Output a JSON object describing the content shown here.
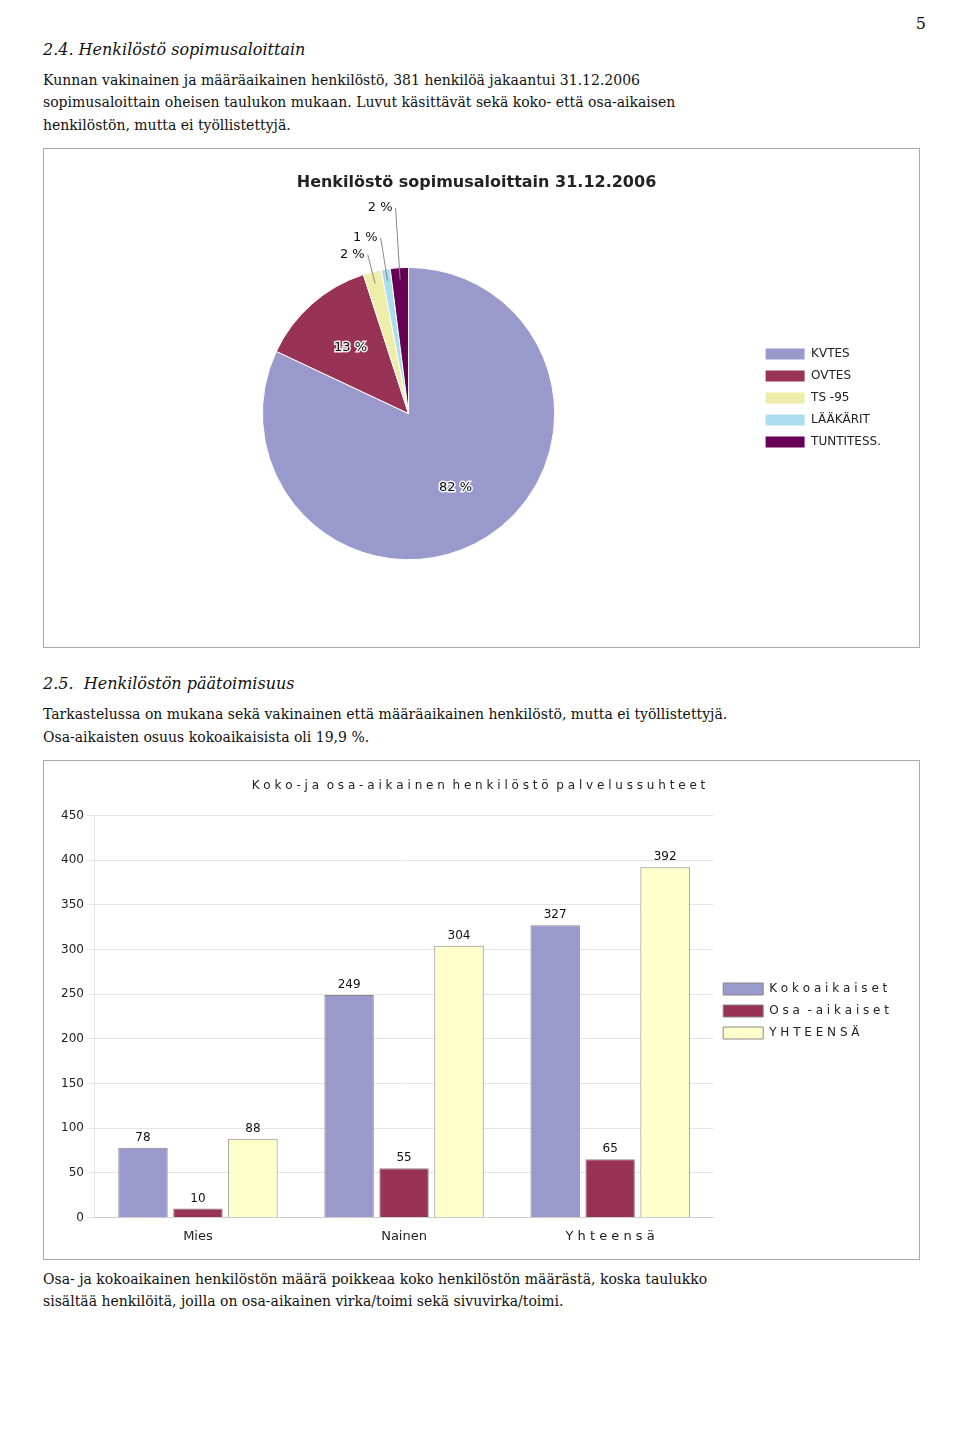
{
  "page_number": "5",
  "sections": [
    {
      "title": "2.4. Henkilöstö sopimusaloittain",
      "text": "Kunnan vakinainen ja määräaikainen henkilöstö, 381 henkilöä jakaantui 31.12.2006\nsopimusaloittain oheisen taulukon mukaan. Luvut käsittävät sekä koko- että osa-aikaisen\nhenkilöstön, mutta ei työllistettyjä."
    },
    {
      "title": "2.5.  Henkilöstön päätoimisuus",
      "text": "Tarkastelussa on mukana sekä vakinainen että määräaikainen henkilöstö, mutta ei työllistettyjä.\nOsa-aikaisten osuus kokoaikaisista oli 19,9 %."
    }
  ],
  "footer_text": "Osa- ja kokoaikainen henkilöstön määrä poikkeaa koko henkilöstön määrästä, koska taulukko\nsisältää henkilöitä, joilla on osa-aikainen virka/toimi sekä sivuvirka/toimi.",
  "chart_data": [
    {
      "type": "pie",
      "title": "Henkilöstö sopimusaloittain 31.12.2006",
      "categories": [
        "KVTES",
        "OVTES",
        "TS -95",
        "LÄÄKÄRIT",
        "TUNTITESS."
      ],
      "values": [
        82,
        13,
        2,
        1,
        2
      ],
      "value_labels": [
        "82 %",
        "13 %",
        "2 %",
        "1 %",
        "2 %"
      ],
      "colors": [
        "#9999cc",
        "#993355",
        "#eeeeaa",
        "#aaddee",
        "#660055"
      ],
      "data_labels": true,
      "legend": "right"
    },
    {
      "type": "bar",
      "title": "K o k o - j a  o s a - a i k a i n e n  h e n k i l ö s t ö  p a l v e l u s s u h t e e t",
      "categories": [
        "Mies",
        "Nainen",
        "Y h t e e n s ä"
      ],
      "series": [
        {
          "name": "K o k o a i k a i s e t",
          "color": "#9999cc",
          "values": [
            78,
            249,
            327
          ]
        },
        {
          "name": "O s a  - a i k a i s e t",
          "color": "#993355",
          "values": [
            10,
            55,
            65
          ]
        },
        {
          "name": "Y H T E E N S Ä",
          "color": "#ffffcc",
          "values": [
            88,
            304,
            392
          ]
        }
      ],
      "ylim": [
        0,
        450
      ],
      "yticks": [
        0,
        50,
        100,
        150,
        200,
        250,
        300,
        350,
        400,
        450
      ],
      "grid": true,
      "data_labels": true,
      "legend": "right"
    }
  ]
}
